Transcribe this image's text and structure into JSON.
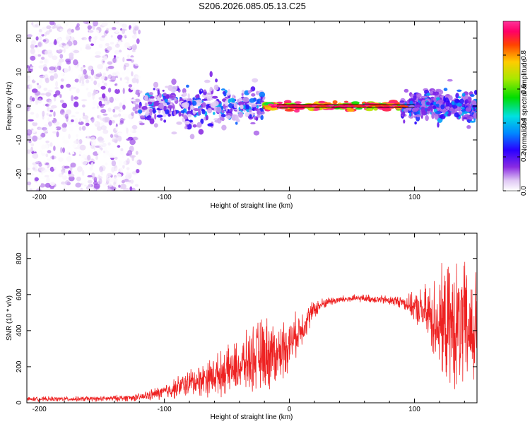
{
  "figure": {
    "title": "S206.2026.085.05.13.C25"
  },
  "chart_data": [
    {
      "type": "heatmap",
      "xlabel": "Height of straight line (km)",
      "ylabel": "Frequency (Hz)",
      "xlim": [
        -210,
        150
      ],
      "ylim": [
        -25,
        25
      ],
      "xticks": [
        -200,
        -100,
        0,
        100
      ],
      "xtick_labels": [
        "-200",
        "-100",
        "0",
        "100"
      ],
      "yticks": [
        -20,
        -10,
        0,
        10,
        20
      ],
      "ytick_labels": [
        "-20",
        "-10",
        "0",
        "10",
        "20"
      ],
      "colorbar": {
        "label": "Normalized spectral amplitude",
        "range": [
          0,
          1
        ],
        "ticks": [
          0.0,
          0.2,
          0.4,
          0.6,
          0.8
        ],
        "tick_labels": [
          "0.0",
          "0.2",
          "0.4",
          "0.6",
          "0.8"
        ]
      },
      "description_regions": [
        {
          "x_range": [
            -210,
            -120
          ],
          "freq_spread_hz": 25,
          "amplitude": [
            0.0,
            0.15
          ]
        },
        {
          "x_range": [
            -120,
            -20
          ],
          "freq_spread_hz": 6,
          "amplitude": [
            0.05,
            0.4
          ]
        },
        {
          "x_range": [
            -20,
            90
          ],
          "freq_spread_hz": 1,
          "amplitude": [
            0.5,
            1.0
          ]
        },
        {
          "x_range": [
            90,
            150
          ],
          "freq_spread_hz": 4,
          "amplitude": [
            0.1,
            0.4
          ]
        }
      ]
    },
    {
      "type": "line",
      "xlabel": "Height of straight line (km)",
      "ylabel": "SNR (10 * v/v)",
      "xlim": [
        -210,
        150
      ],
      "ylim": [
        0,
        940
      ],
      "xticks": [
        -200,
        -100,
        0,
        100
      ],
      "xtick_labels": [
        "-200",
        "-100",
        "0",
        "100"
      ],
      "yticks": [
        0,
        200,
        400,
        600,
        800
      ],
      "ytick_labels": [
        "0",
        "200",
        "400",
        "600",
        "800"
      ],
      "color": "#ee2222",
      "envelope": {
        "x": [
          -210,
          -150,
          -120,
          -100,
          -80,
          -60,
          -40,
          -25,
          -15,
          -10,
          -5,
          0,
          10,
          20,
          30,
          45,
          60,
          75,
          90,
          100,
          110,
          120,
          130,
          140,
          150
        ],
        "mean": [
          20,
          22,
          30,
          60,
          110,
          150,
          200,
          260,
          280,
          260,
          300,
          330,
          420,
          520,
          560,
          575,
          580,
          570,
          560,
          530,
          490,
          440,
          420,
          410,
          400
        ],
        "spread": [
          15,
          18,
          25,
          50,
          90,
          130,
          170,
          230,
          250,
          180,
          200,
          160,
          120,
          60,
          30,
          25,
          25,
          30,
          40,
          90,
          200,
          330,
          420,
          430,
          380
        ]
      }
    }
  ]
}
